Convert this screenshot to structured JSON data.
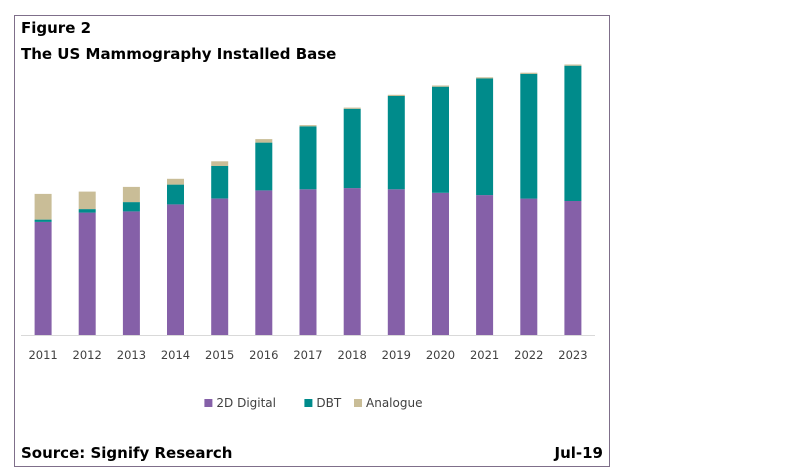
{
  "header": {
    "figure_label": "Figure 2",
    "title": "The US Mammography Installed Base"
  },
  "footer": {
    "source": "Source: Signify Research",
    "date": "Jul-19"
  },
  "colors": {
    "2D Digital": "#8560a8",
    "DBT": "#008b8b",
    "Analogue": "#c9bd97",
    "axis": "#d9d9d9"
  },
  "chart_data": {
    "type": "bar",
    "stacked": true,
    "title": "The US Mammography Installed Base",
    "xlabel": "",
    "ylabel": "",
    "categories": [
      "2011",
      "2012",
      "2013",
      "2014",
      "2015",
      "2016",
      "2017",
      "2018",
      "2019",
      "2020",
      "2021",
      "2022",
      "2023"
    ],
    "series": [
      {
        "name": "2D Digital",
        "values": [
          97,
          105,
          106,
          112,
          117,
          124,
          125,
          126,
          125,
          122,
          120,
          117,
          115
        ]
      },
      {
        "name": "DBT",
        "values": [
          2,
          3,
          8,
          17,
          28,
          41,
          54,
          68,
          80,
          91,
          100,
          107,
          116
        ]
      },
      {
        "name": "Analogue",
        "values": [
          22,
          15,
          13,
          5,
          4,
          3,
          1,
          1,
          1,
          1,
          1,
          1,
          1
        ]
      }
    ],
    "ylim": [
      0,
      235
    ],
    "grid": false,
    "legend": "bottom"
  }
}
